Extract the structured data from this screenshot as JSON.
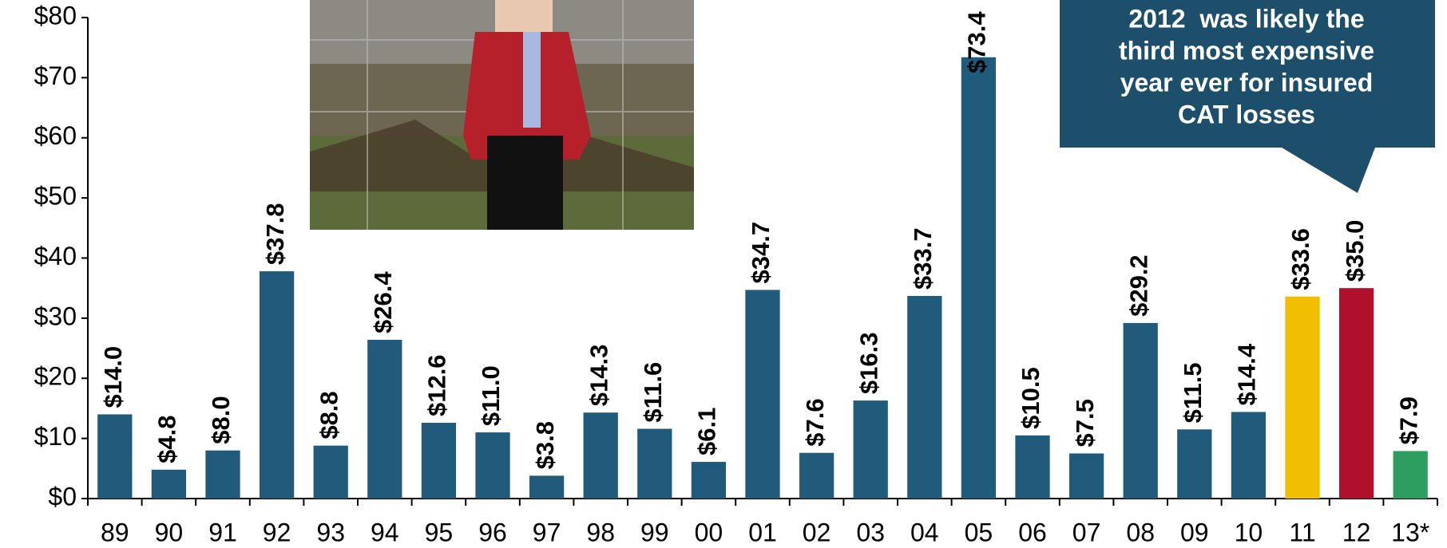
{
  "chart_data": {
    "type": "bar",
    "annotation": [
      "2012  was likely the",
      "third most expensive",
      "year ever for insured",
      "CAT losses"
    ],
    "categories": [
      "89",
      "90",
      "91",
      "92",
      "93",
      "94",
      "95",
      "96",
      "97",
      "98",
      "99",
      "00",
      "01",
      "02",
      "03",
      "04",
      "05",
      "06",
      "07",
      "08",
      "09",
      "10",
      "11",
      "12",
      "13*"
    ],
    "values": [
      14.0,
      4.8,
      8.0,
      37.8,
      8.8,
      26.4,
      12.6,
      11.0,
      3.8,
      14.3,
      11.6,
      6.1,
      34.7,
      7.6,
      16.3,
      33.7,
      73.4,
      10.5,
      7.5,
      29.2,
      11.5,
      14.4,
      33.6,
      35.0,
      7.9
    ],
    "value_labels": [
      "$14.0",
      "$4.8",
      "$8.0",
      "$37.8",
      "$8.8",
      "$26.4",
      "$12.6",
      "$11.0",
      "$3.8",
      "$14.3",
      "$11.6",
      "$6.1",
      "$34.7",
      "$7.6",
      "$16.3",
      "$33.7",
      "$73.4",
      "$10.5",
      "$7.5",
      "$29.2",
      "$11.5",
      "$14.4",
      "$33.6",
      "$35.0",
      "$7.9"
    ],
    "colors": [
      "#215b7b",
      "#215b7b",
      "#215b7b",
      "#215b7b",
      "#215b7b",
      "#215b7b",
      "#215b7b",
      "#215b7b",
      "#215b7b",
      "#215b7b",
      "#215b7b",
      "#215b7b",
      "#215b7b",
      "#215b7b",
      "#215b7b",
      "#215b7b",
      "#215b7b",
      "#215b7b",
      "#215b7b",
      "#215b7b",
      "#215b7b",
      "#215b7b",
      "#f0c000",
      "#b0102a",
      "#2e9e5e"
    ],
    "ylim": [
      0,
      80
    ],
    "yticks": [
      {
        "value": 0,
        "label": "$0"
      },
      {
        "value": 10,
        "label": "$10"
      },
      {
        "value": 20,
        "label": "$20"
      },
      {
        "value": 30,
        "label": "$30"
      },
      {
        "value": 40,
        "label": "$40"
      },
      {
        "value": 50,
        "label": "$50"
      },
      {
        "value": 60,
        "label": "$60"
      },
      {
        "value": 70,
        "label": "$70"
      },
      {
        "value": 80,
        "label": "$80"
      }
    ],
    "grid": false
  }
}
